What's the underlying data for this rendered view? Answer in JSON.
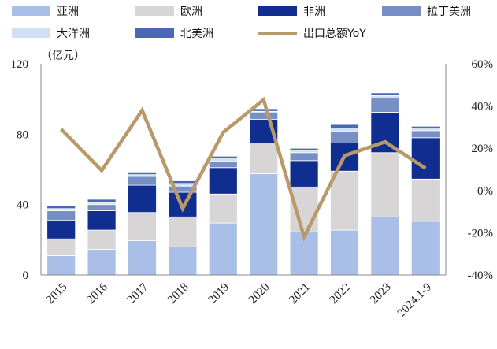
{
  "chart_data": {
    "type": "bar",
    "stacked": true,
    "categories": [
      "2015",
      "2016",
      "2017",
      "2018",
      "2019",
      "2020",
      "2021",
      "2022",
      "2023",
      "2024.1-9"
    ],
    "unit_label": "（亿元）",
    "y_left": {
      "min": 0,
      "max": 120,
      "ticks": [
        0,
        40,
        80,
        120
      ]
    },
    "y_right": {
      "min": -40,
      "max": 60,
      "ticks": [
        -40,
        -20,
        0,
        20,
        40,
        60
      ],
      "suffix": "%"
    },
    "series": [
      {
        "name": "亚洲",
        "color": "#a9bfe8",
        "values": [
          11,
          14.5,
          19.5,
          16,
          29.5,
          57.5,
          24.5,
          25.5,
          33,
          30.5
        ]
      },
      {
        "name": "欧洲",
        "color": "#d7d5d5",
        "values": [
          9.5,
          11,
          16,
          17,
          16.5,
          17,
          25.5,
          33.5,
          36.5,
          24
        ]
      },
      {
        "name": "非洲",
        "color": "#0f2e8f",
        "values": [
          10.5,
          11,
          15.5,
          14,
          15,
          14,
          15,
          16,
          23,
          23.5
        ]
      },
      {
        "name": "拉丁美洲",
        "color": "#7690c5",
        "values": [
          5.5,
          3.5,
          5,
          3.5,
          3.5,
          3.5,
          4.5,
          6.5,
          8,
          4
        ]
      },
      {
        "name": "大洋洲",
        "color": "#cfe0f4",
        "values": [
          1.2,
          1.2,
          1.0,
          1.5,
          1.5,
          1.0,
          1.0,
          2.0,
          1.5,
          1.0
        ]
      },
      {
        "name": "北美洲",
        "color": "#4a68b3",
        "values": [
          1.8,
          1.8,
          1.5,
          1.5,
          1.5,
          1.5,
          1.5,
          2.0,
          1.5,
          1.5
        ]
      }
    ],
    "line": {
      "name": "出口总额YoY",
      "color": "#b89a6a",
      "axis": "right",
      "values": [
        29,
        9.5,
        38,
        -8.5,
        27.5,
        43,
        -22,
        16.5,
        23,
        10.5
      ]
    },
    "legend_position": "top"
  }
}
